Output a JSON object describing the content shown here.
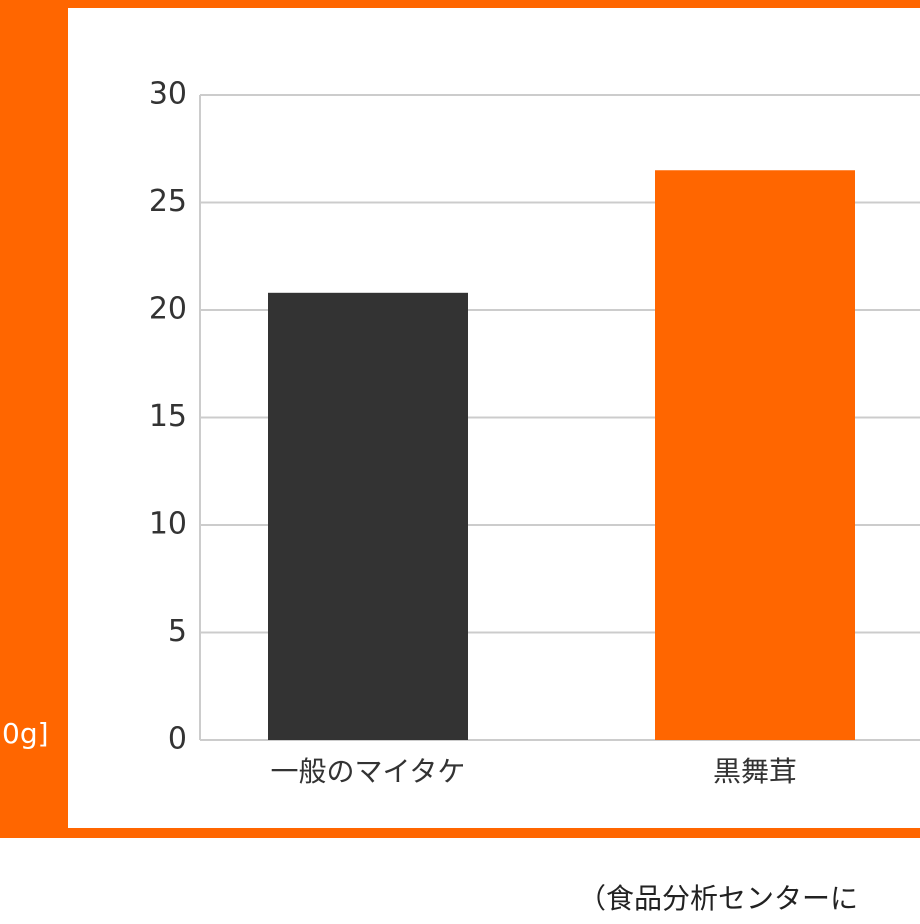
{
  "chart_data": {
    "type": "bar",
    "y_label": "0g]",
    "categories": [
      "一般のマイタケ",
      "黒舞茸"
    ],
    "series": [
      {
        "values": [
          20.8,
          26.5
        ],
        "colors": [
          "#333333",
          "#ff6600"
        ]
      }
    ],
    "ylim": [
      0,
      30
    ],
    "yticks": [
      0,
      5,
      10,
      15,
      20,
      25,
      30
    ],
    "grid": true,
    "note": "（食品分析センターに"
  }
}
